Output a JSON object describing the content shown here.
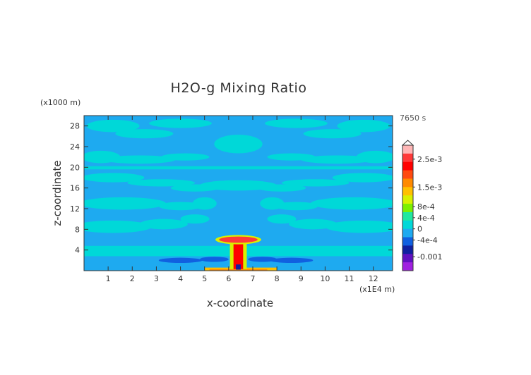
{
  "chart_data": {
    "type": "heatmap",
    "title": "H2O-g Mixing Ratio",
    "xlabel": "x-coordinate",
    "ylabel": "z-coordinate",
    "x_unit": "(x1E4 m)",
    "y_unit": "(x1000 m)",
    "time_label": "7650 s",
    "xlim": [
      0,
      12.8
    ],
    "ylim": [
      0,
      30
    ],
    "x_ticks": [
      1,
      2,
      3,
      4,
      5,
      6,
      7,
      8,
      9,
      10,
      11,
      12
    ],
    "y_ticks": [
      4,
      8,
      12,
      16,
      20,
      24,
      28
    ],
    "background_value": "0",
    "colorbar": {
      "labels": [
        {
          "value": 0.0025,
          "text": "2.5e-3"
        },
        {
          "value": 0.0015,
          "text": "1.5e-3"
        },
        {
          "value": 0.0008,
          "text": "8e-4"
        },
        {
          "value": 0.0004,
          "text": "4e-4"
        },
        {
          "value": 0,
          "text": "0"
        },
        {
          "value": -0.0004,
          "text": "-4e-4"
        },
        {
          "value": -0.001,
          "text": "-0.001"
        }
      ],
      "colors_top_to_bottom": [
        "#ffb6b6",
        "#ff3a3a",
        "#ff0000",
        "#ff4a10",
        "#ff8a00",
        "#ffc000",
        "#d8f000",
        "#7cf000",
        "#20e8a0",
        "#00d8d8",
        "#1eaaf0",
        "#1060e0",
        "#1020a0",
        "#6010c0",
        "#a020e0"
      ]
    },
    "features": [
      {
        "name": "plume cap",
        "x": 6.4,
        "z": 6,
        "value": 0.0025
      },
      {
        "name": "plume stem",
        "x": 6.4,
        "z": 3,
        "value": 0.0015
      },
      {
        "name": "surface band",
        "x": [
          5,
          8
        ],
        "z": 0.3,
        "value": 0.0008
      },
      {
        "name": "low-level moist layer",
        "x": [
          0,
          12.8
        ],
        "z": 4,
        "value": 0.0004
      },
      {
        "name": "drier pockets near surface",
        "x": [
          3,
          8.5
        ],
        "z": 2,
        "value": -0.0004
      }
    ]
  }
}
